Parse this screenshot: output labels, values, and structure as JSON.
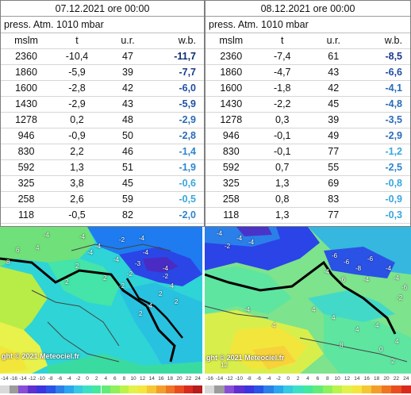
{
  "tables": [
    {
      "date": "07.12.2021 ore 00:00",
      "pressure": "press. Atm. 1010 mbar",
      "headers": [
        "mslm",
        "t",
        "u.r.",
        "w.b."
      ],
      "rows": [
        [
          "2360",
          "-10,4",
          "47",
          "-11,7"
        ],
        [
          "1860",
          "-5,9",
          "39",
          "-7,7"
        ],
        [
          "1600",
          "-2,8",
          "42",
          "-6,0"
        ],
        [
          "1430",
          "-2,9",
          "43",
          "-5,9"
        ],
        [
          "1278",
          "0,2",
          "48",
          "-2,9"
        ],
        [
          "946",
          "-0,9",
          "50",
          "-2,8"
        ],
        [
          "830",
          "2,2",
          "46",
          "-1,4"
        ],
        [
          "592",
          "1,3",
          "51",
          "-1,9"
        ],
        [
          "325",
          "3,8",
          "45",
          "-0,6"
        ],
        [
          "258",
          "2,6",
          "59",
          "-0,5"
        ],
        [
          "118",
          "-0,5",
          "82",
          "-2,0"
        ]
      ],
      "wb_colors": [
        "#0d2a73",
        "#1a3a8a",
        "#1f4fa3",
        "#1f4fa3",
        "#2a6bb8",
        "#2a6bb8",
        "#2f84cc",
        "#2f84cc",
        "#3aa6dd",
        "#3aa6dd",
        "#2f84cc"
      ]
    },
    {
      "date": "08.12.2021 ore 00:00",
      "pressure": "press. Atm. 1010 mbar",
      "headers": [
        "mslm",
        "t",
        "u.r.",
        "w.b."
      ],
      "rows": [
        [
          "2360",
          "-7,4",
          "61",
          "-8,5"
        ],
        [
          "1860",
          "-4,7",
          "43",
          "-6,6"
        ],
        [
          "1600",
          "-1,8",
          "42",
          "-4,1"
        ],
        [
          "1430",
          "-2,2",
          "45",
          "-4,8"
        ],
        [
          "1278",
          "0,3",
          "39",
          "-3,5"
        ],
        [
          "946",
          "-0,1",
          "49",
          "-2,9"
        ],
        [
          "830",
          "-0,1",
          "77",
          "-1,2"
        ],
        [
          "592",
          "0,7",
          "55",
          "-2,5"
        ],
        [
          "325",
          "1,3",
          "69",
          "-0,8"
        ],
        [
          "258",
          "0,8",
          "83",
          "-0,9"
        ],
        [
          "118",
          "1,3",
          "77",
          "-0,3"
        ]
      ],
      "wb_colors": [
        "#1a3a8a",
        "#1f4fa3",
        "#2a6bb8",
        "#2a6bb8",
        "#2a6bb8",
        "#2a6bb8",
        "#3aa6dd",
        "#2f84cc",
        "#3aa6dd",
        "#3aa6dd",
        "#3aa6dd"
      ]
    }
  ],
  "maps": {
    "credit": "ght © 2021 Meteociel.fr",
    "left_scale": [
      "-14",
      "-16",
      "-14",
      "-12",
      "-10",
      "-8",
      "-6",
      "-4",
      "-2",
      "0",
      "2",
      "4",
      "6",
      "8",
      "10",
      "12",
      "14",
      "16",
      "18",
      "20",
      "22",
      "24"
    ],
    "right_scale": [
      "-16",
      "-14",
      "-12",
      "-10",
      "-8",
      "-6",
      "-4",
      "-2",
      "0",
      "2",
      "4",
      "6",
      "8",
      "10",
      "12",
      "14",
      "16",
      "18",
      "20",
      "22",
      "24"
    ],
    "left_labels": [
      "-4",
      "-4",
      "-2",
      "-4",
      "-4",
      "-4",
      "-4",
      "-4",
      "-3",
      "-4",
      "-2",
      "-2",
      "6",
      "4",
      "8",
      "2",
      "2",
      "2",
      "-2",
      "2",
      "2",
      "-4",
      "-4",
      "2"
    ],
    "right_labels": [
      "-4",
      "-4",
      "-4",
      "-2",
      "-6",
      "-6",
      "-4",
      "-6",
      "-8",
      "-4",
      "-4",
      "-6",
      "-6",
      "-4",
      "-2",
      "4",
      "4",
      "4",
      "4",
      "4",
      "8",
      "0",
      "2",
      "-4",
      "4",
      "12"
    ]
  }
}
